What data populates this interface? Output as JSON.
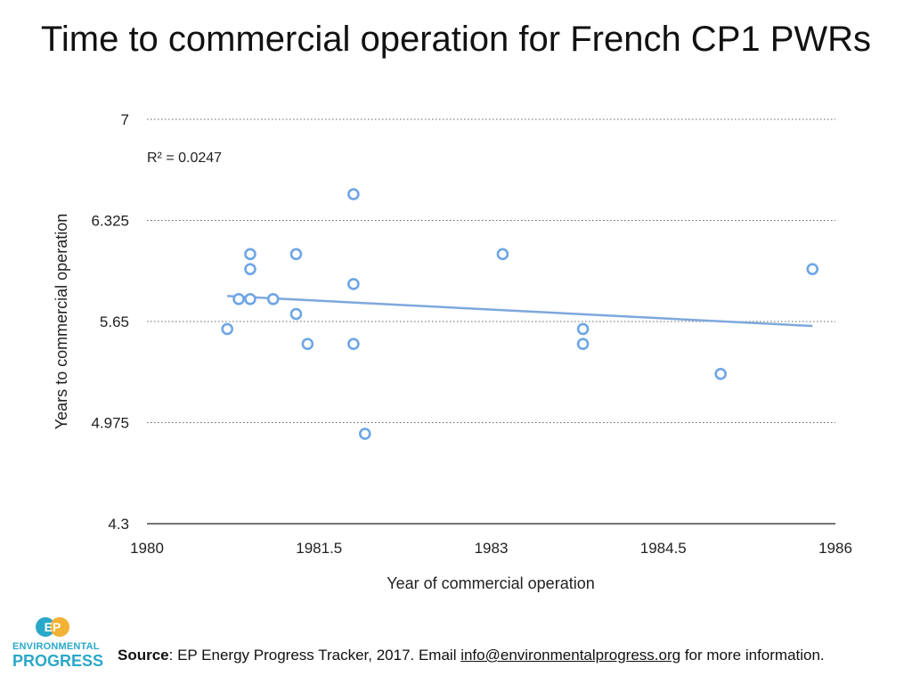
{
  "chart_data": {
    "type": "scatter",
    "title": "Time to commercial operation for French CP1 PWRs",
    "xlabel": "Year of commercial operation",
    "ylabel": "Years to commercial operation",
    "xlim": [
      1980,
      1986
    ],
    "ylim": [
      4.3,
      7
    ],
    "xticks": [
      "1980",
      "1981.5",
      "1983",
      "1984.5",
      "1986"
    ],
    "xtick_values": [
      1980,
      1981.5,
      1983,
      1984.5,
      1986
    ],
    "yticks": [
      "4.3",
      "4.975",
      "5.65",
      "6.325",
      "7"
    ],
    "ytick_values": [
      4.3,
      4.975,
      5.65,
      6.325,
      7
    ],
    "grid": "horizontal-dotted",
    "annotation": "R² = 0.0247",
    "trendline": {
      "x": [
        1980.7,
        1985.8
      ],
      "y": [
        5.82,
        5.62
      ]
    },
    "series": [
      {
        "color": "#6ea6e6",
        "points": [
          {
            "x": 1980.7,
            "y": 5.6
          },
          {
            "x": 1980.8,
            "y": 5.8
          },
          {
            "x": 1980.9,
            "y": 5.8
          },
          {
            "x": 1980.9,
            "y": 6.0
          },
          {
            "x": 1980.9,
            "y": 6.1
          },
          {
            "x": 1981.1,
            "y": 5.8
          },
          {
            "x": 1981.3,
            "y": 6.1
          },
          {
            "x": 1981.3,
            "y": 5.7
          },
          {
            "x": 1981.4,
            "y": 5.5
          },
          {
            "x": 1981.8,
            "y": 6.5
          },
          {
            "x": 1981.8,
            "y": 5.9
          },
          {
            "x": 1981.8,
            "y": 5.5
          },
          {
            "x": 1981.9,
            "y": 4.9
          },
          {
            "x": 1983.1,
            "y": 6.1
          },
          {
            "x": 1983.8,
            "y": 5.6
          },
          {
            "x": 1983.8,
            "y": 5.5
          },
          {
            "x": 1985.0,
            "y": 5.3
          },
          {
            "x": 1985.8,
            "y": 6.0
          }
        ]
      }
    ]
  },
  "footer": {
    "source_label": "Source",
    "source_text": ": EP Energy Progress Tracker, 2017. Email ",
    "email": "info@environmentalprogress.org",
    "suffix": " for more information."
  },
  "logo": {
    "mark": "EP",
    "line1": "ENVIRONMENTAL",
    "line2": "PROGRESS",
    "colors": {
      "teal": "#2aa8c9",
      "gold": "#f2b233"
    }
  }
}
